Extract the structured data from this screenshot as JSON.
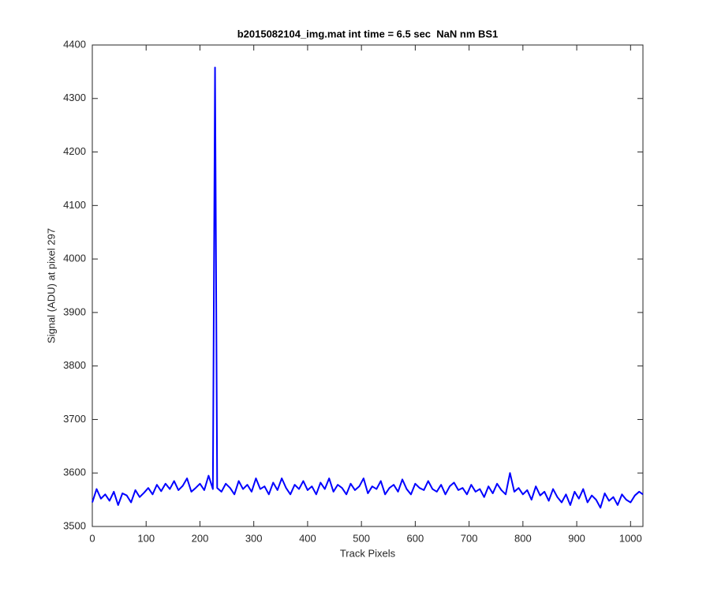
{
  "chart_data": {
    "type": "line",
    "title": "b2015082104_img.mat int time = 6.5 sec  NaN nm BS1",
    "x_label": "Track Pixels",
    "y_label": "Signal (ADU) at pixel 297",
    "xlim": [
      0,
      1023
    ],
    "ylim": [
      3500,
      4400
    ],
    "xticks": [
      0,
      100,
      200,
      300,
      400,
      500,
      600,
      700,
      800,
      900,
      1000
    ],
    "yticks": [
      3500,
      3600,
      3700,
      3800,
      3900,
      4000,
      4100,
      4200,
      4300,
      4400
    ],
    "series": [
      {
        "color": "#0000ff",
        "x": [
          0,
          8,
          16,
          24,
          32,
          40,
          48,
          56,
          64,
          72,
          80,
          88,
          96,
          104,
          112,
          120,
          128,
          136,
          144,
          152,
          160,
          168,
          176,
          184,
          192,
          200,
          208,
          216,
          224,
          228,
          232,
          240,
          248,
          256,
          264,
          272,
          280,
          288,
          296,
          304,
          312,
          320,
          328,
          336,
          344,
          352,
          360,
          368,
          376,
          384,
          392,
          400,
          408,
          416,
          424,
          432,
          440,
          448,
          456,
          464,
          472,
          480,
          488,
          496,
          504,
          512,
          520,
          528,
          536,
          544,
          552,
          560,
          568,
          576,
          584,
          592,
          600,
          608,
          616,
          624,
          632,
          640,
          648,
          656,
          664,
          672,
          680,
          688,
          696,
          704,
          712,
          720,
          728,
          736,
          744,
          752,
          760,
          768,
          776,
          784,
          792,
          800,
          808,
          816,
          824,
          832,
          840,
          848,
          856,
          864,
          872,
          880,
          888,
          896,
          904,
          912,
          920,
          928,
          936,
          944,
          952,
          960,
          968,
          976,
          984,
          992,
          1000,
          1008,
          1016,
          1023
        ],
        "values": [
          3545,
          3570,
          3552,
          3560,
          3548,
          3565,
          3540,
          3562,
          3558,
          3545,
          3568,
          3555,
          3563,
          3572,
          3560,
          3578,
          3566,
          3580,
          3570,
          3585,
          3568,
          3576,
          3590,
          3565,
          3572,
          3580,
          3568,
          3595,
          3570,
          4358,
          3572,
          3565,
          3580,
          3572,
          3560,
          3585,
          3570,
          3578,
          3565,
          3590,
          3570,
          3575,
          3560,
          3582,
          3568,
          3590,
          3572,
          3560,
          3578,
          3570,
          3585,
          3568,
          3575,
          3560,
          3582,
          3570,
          3590,
          3565,
          3578,
          3572,
          3560,
          3580,
          3568,
          3575,
          3590,
          3562,
          3575,
          3570,
          3585,
          3560,
          3572,
          3578,
          3565,
          3588,
          3570,
          3560,
          3580,
          3572,
          3568,
          3585,
          3570,
          3565,
          3578,
          3560,
          3575,
          3582,
          3568,
          3572,
          3560,
          3578,
          3565,
          3570,
          3555,
          3575,
          3562,
          3580,
          3568,
          3560,
          3600,
          3565,
          3572,
          3560,
          3568,
          3550,
          3575,
          3558,
          3565,
          3548,
          3570,
          3555,
          3545,
          3560,
          3540,
          3565,
          3552,
          3570,
          3545,
          3558,
          3550,
          3535,
          3562,
          3548,
          3555,
          3540,
          3560,
          3550,
          3545,
          3558,
          3565,
          3560
        ]
      }
    ]
  }
}
